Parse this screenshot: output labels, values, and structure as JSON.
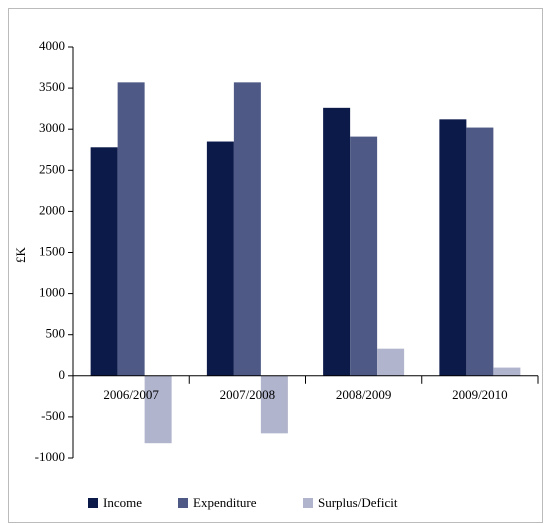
{
  "chart_data": {
    "type": "bar",
    "y_label": "£K",
    "categories": [
      "2006/2007",
      "2007/2008",
      "2008/2009",
      "2009/2010"
    ],
    "series": [
      {
        "name": "Income",
        "color": "#0c1a4a",
        "values": [
          2780,
          2850,
          3260,
          3120
        ]
      },
      {
        "name": "Expenditure",
        "color": "#4e5a85",
        "values": [
          3570,
          3570,
          2910,
          3020
        ]
      },
      {
        "name": "Surplus/Deficit",
        "color": "#b0b4cc",
        "values": [
          -820,
          -700,
          330,
          100
        ]
      }
    ],
    "ylim": [
      -1000,
      4000
    ],
    "yticks": [
      -1000,
      -500,
      0,
      500,
      1000,
      1500,
      2000,
      2500,
      3000,
      3500,
      4000
    ],
    "legend": "bottom"
  }
}
